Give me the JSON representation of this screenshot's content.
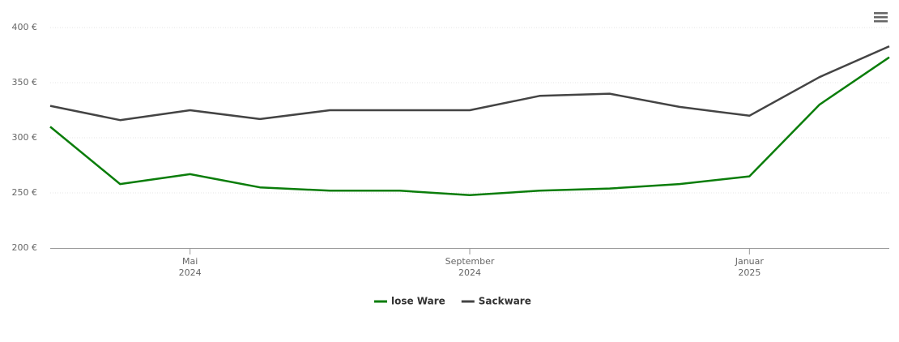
{
  "chart_data": {
    "type": "line",
    "x": [
      "2024-03",
      "2024-04",
      "2024-05",
      "2024-06",
      "2024-07",
      "2024-08",
      "2024-09",
      "2024-10",
      "2024-11",
      "2024-12",
      "2025-01",
      "2025-02",
      "2025-03"
    ],
    "series": [
      {
        "name": "lose Ware",
        "color": "#0a7d0a",
        "values": [
          310,
          258,
          267,
          255,
          252,
          252,
          248,
          252,
          254,
          258,
          265,
          330,
          373
        ]
      },
      {
        "name": "Sackware",
        "color": "#444444",
        "values": [
          329,
          316,
          325,
          317,
          325,
          325,
          325,
          338,
          340,
          328,
          320,
          355,
          383
        ]
      }
    ],
    "xlim": [
      "2024-03",
      "2025-03"
    ],
    "xticks": [
      {
        "value": "2024-05",
        "label": [
          "Mai",
          "2024"
        ]
      },
      {
        "value": "2024-09",
        "label": [
          "September",
          "2024"
        ]
      },
      {
        "value": "2025-01",
        "label": [
          "Januar",
          "2025"
        ]
      }
    ],
    "ylim": [
      200,
      400
    ],
    "yticks": [
      {
        "value": 200,
        "label": "200 €"
      },
      {
        "value": 250,
        "label": "250 €"
      },
      {
        "value": 300,
        "label": "300 €"
      },
      {
        "value": 350,
        "label": "350 €"
      },
      {
        "value": 400,
        "label": "400 €"
      }
    ],
    "grid": true,
    "legend": "bottom"
  }
}
